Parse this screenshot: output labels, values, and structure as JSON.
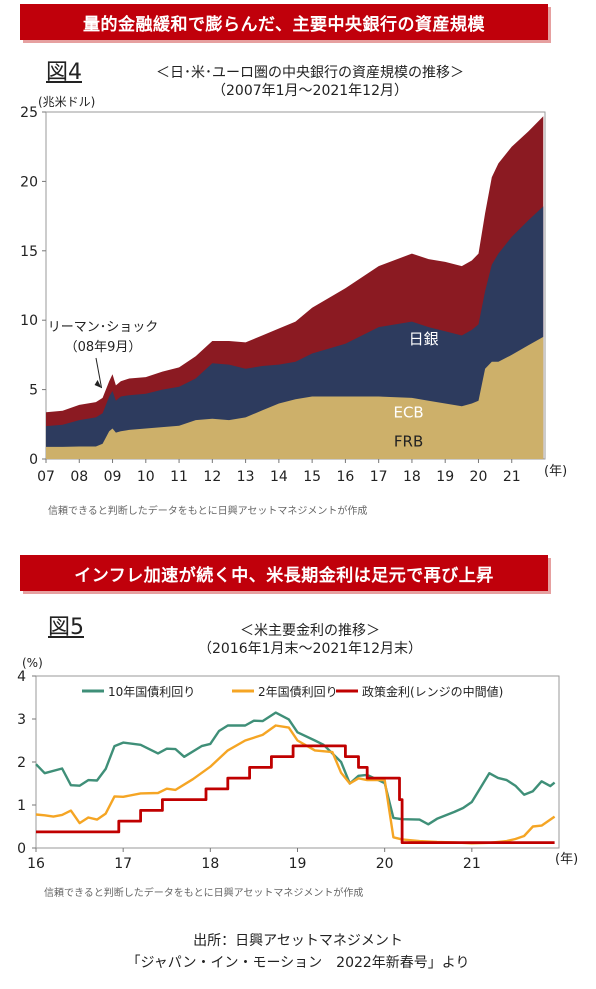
{
  "banner1": "量的金融緩和で膨らんだ、主要中央銀行の資産規模",
  "fig4": {
    "label": "図4",
    "title": "＜日･米･ユーロ圏の中央銀行の資産規模の推移＞",
    "subtitle": "（2007年1月～2021年12月）",
    "source": "信頼できると判断したデータをもとに日興アセットマネジメントが作成"
  },
  "banner2": "インフレ加速が続く中、米長期金利は足元で再び上昇",
  "fig5": {
    "label": "図5",
    "title": "＜米主要金利の推移＞",
    "subtitle": "（2016年1月末～2021年12月末）",
    "source": "信頼できると判断したデータをもとに日興アセットマネジメントが作成"
  },
  "footer": {
    "line1": "出所：日興アセットマネジメント",
    "line2": "「ジャパン・イン・モーション　2022年新春号」より"
  },
  "chart_data": [
    {
      "type": "area",
      "stacked": true,
      "ylabel": "(兆米ドル)",
      "xunit": "(年)",
      "ylim": [
        0,
        25
      ],
      "yticks": [
        0,
        5,
        10,
        15,
        20,
        25
      ],
      "xlim": [
        2007.0,
        2022.0
      ],
      "xticks": [
        {
          "x": 2007,
          "label": "07"
        },
        {
          "x": 2008,
          "label": "08"
        },
        {
          "x": 2009,
          "label": "09"
        },
        {
          "x": 2010,
          "label": "10"
        },
        {
          "x": 2011,
          "label": "11"
        },
        {
          "x": 2012,
          "label": "12"
        },
        {
          "x": 2013,
          "label": "13"
        },
        {
          "x": 2014,
          "label": "14"
        },
        {
          "x": 2015,
          "label": "15"
        },
        {
          "x": 2016,
          "label": "16"
        },
        {
          "x": 2017,
          "label": "17"
        },
        {
          "x": 2018,
          "label": "18"
        },
        {
          "x": 2019,
          "label": "19"
        },
        {
          "x": 2020,
          "label": "20"
        },
        {
          "x": 2021,
          "label": "21"
        }
      ],
      "x": [
        2007.0,
        2007.5,
        2008.0,
        2008.5,
        2008.7,
        2008.9,
        2009.0,
        2009.1,
        2009.25,
        2009.5,
        2010.0,
        2010.5,
        2011.0,
        2011.5,
        2012.0,
        2012.5,
        2013.0,
        2013.5,
        2014.0,
        2014.5,
        2015.0,
        2016.0,
        2017.0,
        2018.0,
        2018.5,
        2019.0,
        2019.5,
        2019.8,
        2020.0,
        2020.2,
        2020.4,
        2020.6,
        2021.0,
        2021.5,
        2021.95
      ],
      "series": [
        {
          "name": "FRB",
          "color": "#cdb06a",
          "values": [
            0.87,
            0.87,
            0.9,
            0.9,
            1.1,
            2.0,
            2.2,
            1.9,
            2.0,
            2.1,
            2.2,
            2.3,
            2.4,
            2.8,
            2.9,
            2.8,
            3.0,
            3.5,
            4.0,
            4.3,
            4.5,
            4.5,
            4.5,
            4.4,
            4.2,
            4.0,
            3.8,
            4.0,
            4.2,
            6.5,
            7.0,
            7.0,
            7.5,
            8.2,
            8.8
          ]
        },
        {
          "name": "ECB",
          "color": "#2d3b5e",
          "values": [
            1.5,
            1.6,
            1.9,
            2.1,
            2.2,
            2.5,
            2.7,
            2.3,
            2.5,
            2.5,
            2.5,
            2.7,
            2.8,
            3.0,
            4.0,
            4.0,
            3.5,
            3.2,
            2.8,
            2.7,
            3.1,
            3.8,
            5.0,
            5.5,
            5.3,
            5.2,
            5.1,
            5.3,
            5.5,
            5.6,
            7.0,
            7.8,
            8.5,
            9.0,
            9.4
          ]
        },
        {
          "name": "日銀",
          "color": "#8b1a22",
          "values": [
            1.0,
            1.0,
            1.1,
            1.1,
            1.1,
            1.1,
            1.2,
            1.1,
            1.1,
            1.2,
            1.2,
            1.3,
            1.4,
            1.6,
            1.6,
            1.7,
            1.9,
            2.2,
            2.6,
            2.9,
            3.3,
            4.0,
            4.4,
            4.9,
            4.9,
            5.0,
            5.0,
            5.0,
            5.1,
            5.6,
            6.3,
            6.5,
            6.5,
            6.4,
            6.5
          ]
        }
      ],
      "annotation": {
        "text1": "リーマン･ショック",
        "text2": "（08年9月）",
        "x": 2008.7,
        "y": 5.4
      }
    },
    {
      "type": "line",
      "ylabel": "(%)",
      "xunit": "(年)",
      "ylim": [
        0,
        4
      ],
      "yticks": [
        0,
        1,
        2,
        3,
        4
      ],
      "xlim": [
        2016.0,
        2022.0
      ],
      "xticks": [
        {
          "x": 2016,
          "label": "16"
        },
        {
          "x": 2017,
          "label": "17"
        },
        {
          "x": 2018,
          "label": "18"
        },
        {
          "x": 2019,
          "label": "19"
        },
        {
          "x": 2020,
          "label": "20"
        },
        {
          "x": 2021,
          "label": "21"
        }
      ],
      "series": [
        {
          "name": "10年国債利回り",
          "color": "#3f8f78",
          "x": [
            2016.0,
            2016.1,
            2016.3,
            2016.4,
            2016.5,
            2016.6,
            2016.7,
            2016.8,
            2016.9,
            2017.0,
            2017.2,
            2017.4,
            2017.5,
            2017.6,
            2017.7,
            2017.9,
            2018.0,
            2018.1,
            2018.2,
            2018.4,
            2018.5,
            2018.6,
            2018.75,
            2018.9,
            2019.0,
            2019.2,
            2019.3,
            2019.5,
            2019.6,
            2019.7,
            2019.8,
            2020.0,
            2020.1,
            2020.2,
            2020.4,
            2020.5,
            2020.6,
            2020.8,
            2020.9,
            2021.0,
            2021.1,
            2021.2,
            2021.3,
            2021.4,
            2021.5,
            2021.6,
            2021.7,
            2021.8,
            2021.9,
            2021.95
          ],
          "values": [
            1.95,
            1.74,
            1.85,
            1.46,
            1.45,
            1.58,
            1.57,
            1.84,
            2.37,
            2.45,
            2.4,
            2.2,
            2.31,
            2.3,
            2.12,
            2.37,
            2.42,
            2.72,
            2.85,
            2.85,
            2.96,
            2.95,
            3.15,
            2.99,
            2.69,
            2.5,
            2.4,
            2.0,
            1.5,
            1.68,
            1.7,
            1.51,
            0.7,
            0.67,
            0.66,
            0.55,
            0.68,
            0.84,
            0.93,
            1.07,
            1.4,
            1.74,
            1.63,
            1.58,
            1.45,
            1.24,
            1.32,
            1.55,
            1.44,
            1.52
          ]
        },
        {
          "name": "2年国債利回り",
          "color": "#f5a524",
          "x": [
            2016.0,
            2016.1,
            2016.2,
            2016.3,
            2016.4,
            2016.5,
            2016.6,
            2016.7,
            2016.8,
            2016.9,
            2017.0,
            2017.2,
            2017.4,
            2017.5,
            2017.6,
            2017.8,
            2018.0,
            2018.2,
            2018.4,
            2018.6,
            2018.75,
            2018.9,
            2019.0,
            2019.2,
            2019.4,
            2019.5,
            2019.6,
            2019.7,
            2019.8,
            2020.0,
            2020.1,
            2020.2,
            2020.4,
            2020.6,
            2020.8,
            2021.0,
            2021.2,
            2021.4,
            2021.5,
            2021.6,
            2021.7,
            2021.8,
            2021.95
          ],
          "values": [
            0.78,
            0.76,
            0.73,
            0.77,
            0.87,
            0.58,
            0.71,
            0.66,
            0.8,
            1.2,
            1.19,
            1.27,
            1.28,
            1.38,
            1.35,
            1.6,
            1.89,
            2.27,
            2.5,
            2.63,
            2.85,
            2.8,
            2.5,
            2.27,
            2.23,
            1.75,
            1.5,
            1.62,
            1.58,
            1.58,
            0.25,
            0.2,
            0.16,
            0.14,
            0.13,
            0.11,
            0.12,
            0.16,
            0.21,
            0.28,
            0.5,
            0.52,
            0.73
          ]
        },
        {
          "name": "政策金利(レンジの中間値)",
          "color": "#c00000",
          "step": true,
          "x": [
            2016.0,
            2016.95,
            2017.2,
            2017.45,
            2017.95,
            2018.2,
            2018.45,
            2018.7,
            2018.95,
            2019.55,
            2019.7,
            2019.8,
            2020.17,
            2020.2,
            2021.95
          ],
          "values": [
            0.375,
            0.625,
            0.875,
            1.125,
            1.375,
            1.625,
            1.875,
            2.125,
            2.375,
            2.125,
            1.875,
            1.625,
            1.125,
            0.125,
            0.125
          ]
        }
      ]
    }
  ]
}
